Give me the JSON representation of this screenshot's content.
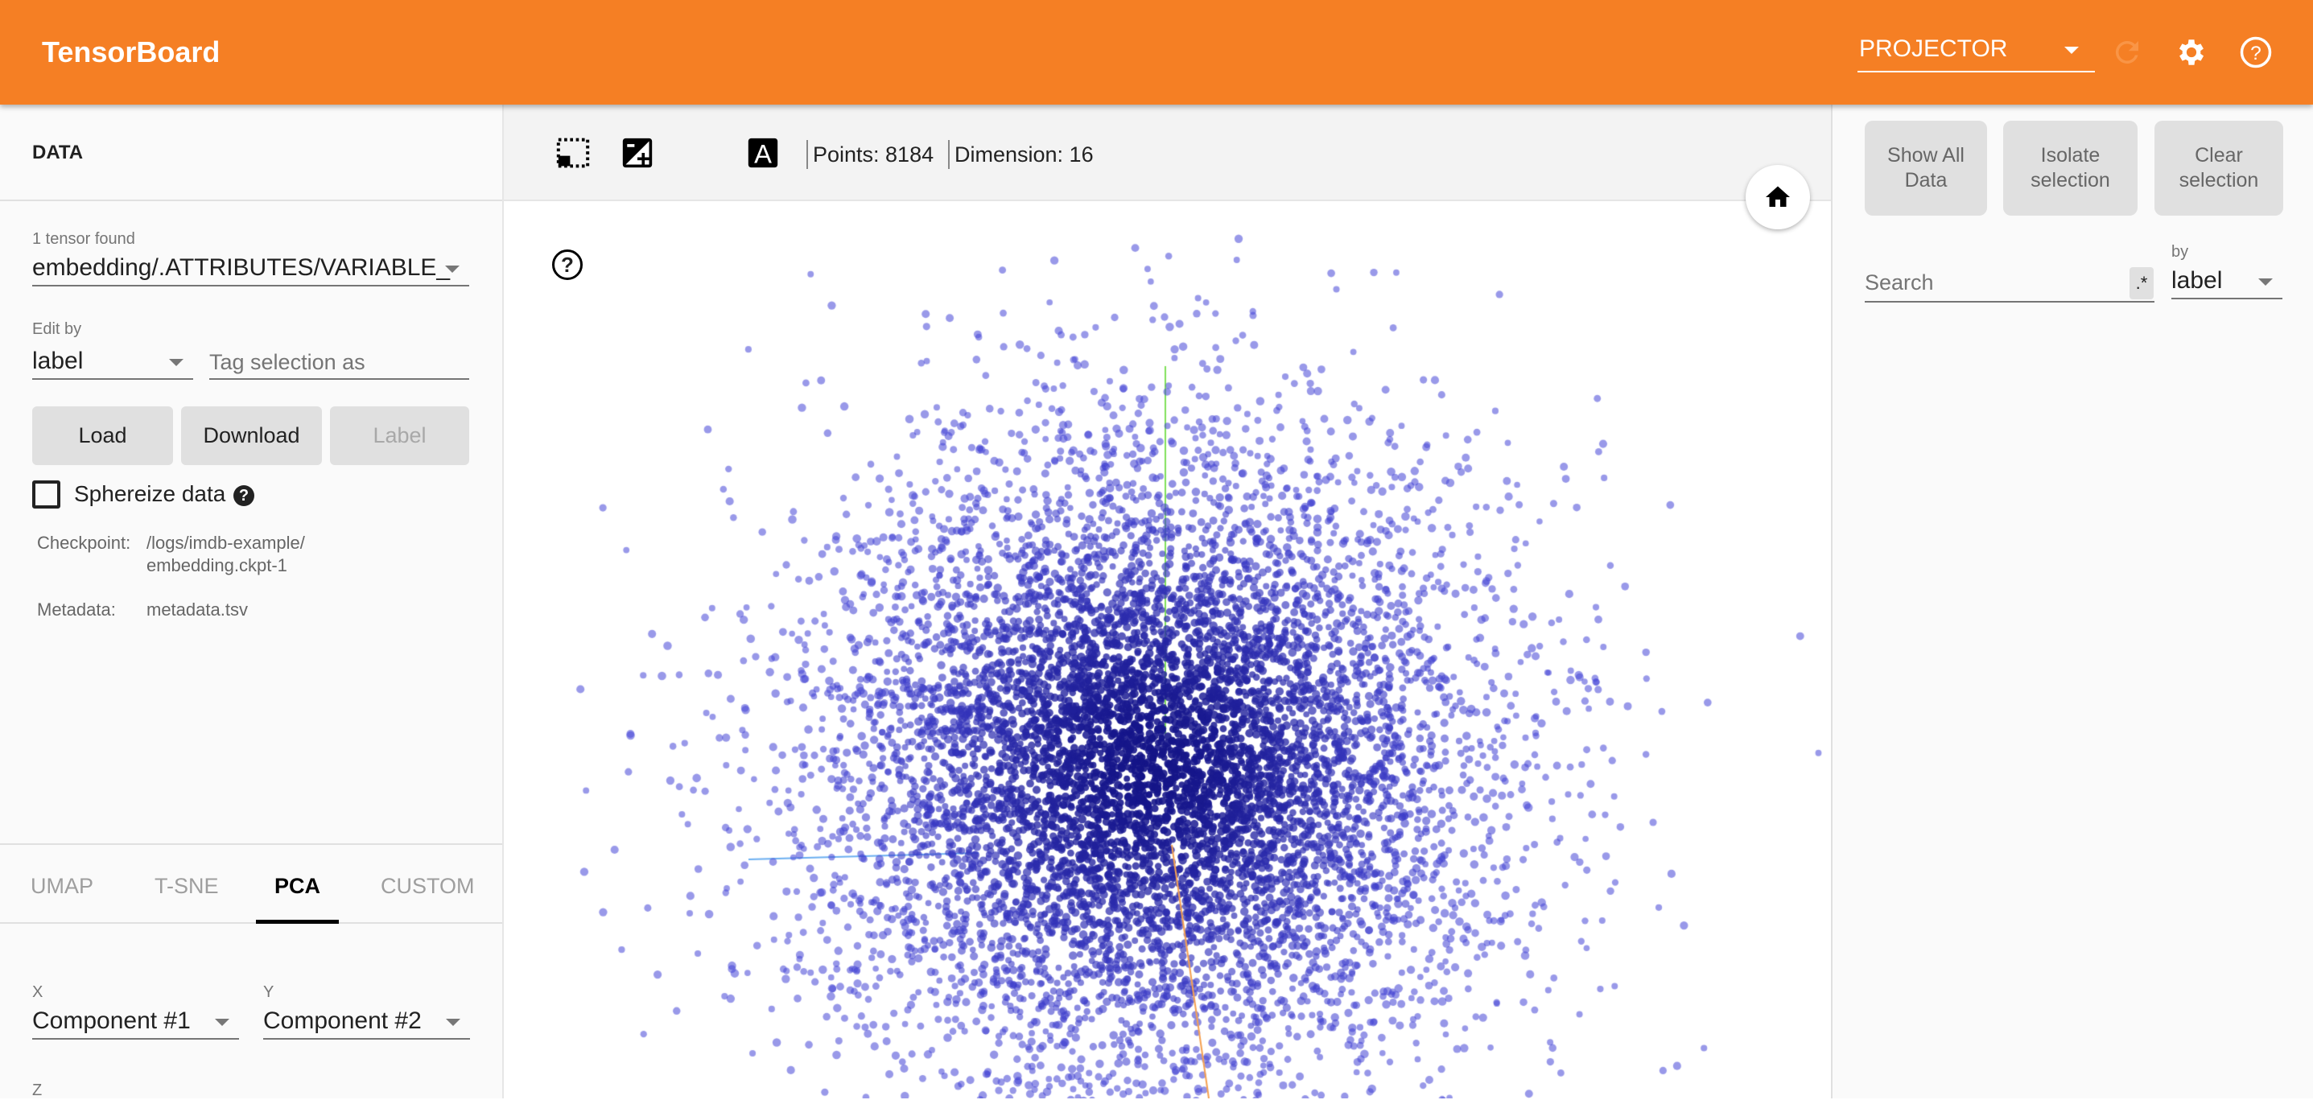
{
  "header": {
    "title": "TensorBoard",
    "plugin_select": "PROJECTOR",
    "icons": [
      "refresh-icon",
      "settings-icon",
      "help-icon"
    ],
    "color": "#f57f24"
  },
  "data_panel": {
    "title": "DATA",
    "tensor_count": "1 tensor found",
    "tensor": "embedding/.ATTRIBUTES/VARIABLE_",
    "edit_by_label": "Edit by",
    "edit_by": "label",
    "tag_placeholder": "Tag selection as",
    "load": "Load",
    "download": "Download",
    "label_button": "Label",
    "sphereize": "Sphereize data",
    "sphereize_checked": false,
    "checkpoint_label": "Checkpoint:",
    "checkpoint_line1": "/logs/imdb-example/",
    "checkpoint_line2": "embedding.ckpt-1",
    "metadata_label": "Metadata:",
    "metadata": "metadata.tsv"
  },
  "projection": {
    "tabs": [
      "UMAP",
      "T-SNE",
      "PCA",
      "CUSTOM"
    ],
    "active_tab": "PCA",
    "x_label": "X",
    "x": "Component #1",
    "y_label": "Y",
    "y": "Component #2",
    "z_label": "Z"
  },
  "toolbar": {
    "points": "Points: 8184",
    "dimension": "Dimension: 16",
    "icons": [
      "selection-icon",
      "night-mode-icon",
      "contrast-icon",
      "labels-icon"
    ]
  },
  "viewer": {
    "point_color": "#2a2ad0",
    "axis_colors": [
      "#7fe05a",
      "#6aaef0",
      "#f5a050"
    ]
  },
  "inspector": {
    "show_all": "Show All Data",
    "isolate": "Isolate selection",
    "clear": "Clear selection",
    "search_placeholder": "Search",
    "regex": ".*",
    "by_label": "by",
    "by": "label"
  }
}
